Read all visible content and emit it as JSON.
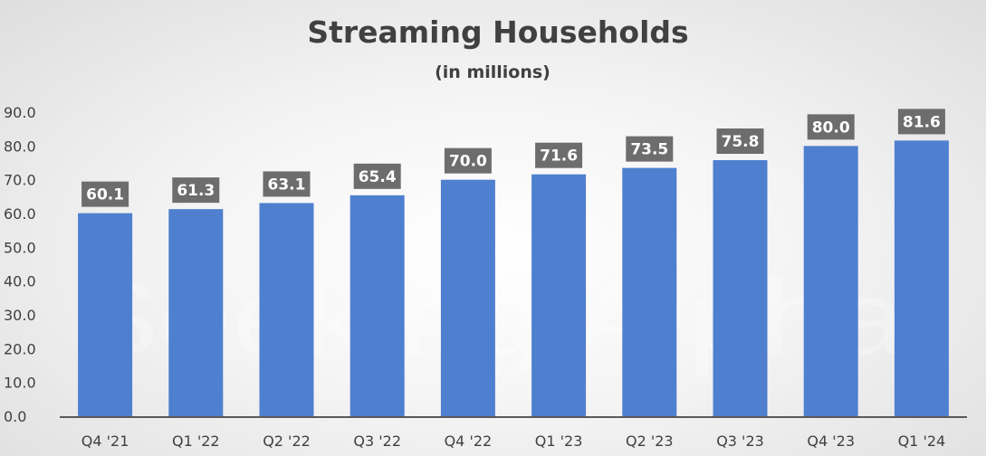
{
  "chart_data": {
    "type": "bar",
    "title": "Streaming Households",
    "subtitle": "(in millions)",
    "categories": [
      "Q4 '21",
      "Q1 '22",
      "Q2 '22",
      "Q3 '22",
      "Q4 '22",
      "Q1 '23",
      "Q2 '23",
      "Q3 '23",
      "Q4 '23",
      "Q1 '24"
    ],
    "values": [
      60.1,
      61.3,
      63.1,
      65.4,
      70.0,
      71.6,
      73.5,
      75.8,
      80.0,
      81.6
    ],
    "data_labels": [
      "60.1",
      "61.3",
      "63.1",
      "65.4",
      "70.0",
      "71.6",
      "73.5",
      "75.8",
      "80.0",
      "81.6"
    ],
    "y_ticks": [
      "0.0",
      "10.0",
      "20.0",
      "30.0",
      "40.0",
      "50.0",
      "60.0",
      "70.0",
      "80.0",
      "90.0"
    ],
    "ylim": [
      0,
      90
    ],
    "grid": false,
    "legend": "none",
    "bar_color": "#4f7fcf",
    "label_box_color": "#6d6d6d",
    "axis_color": "#595959",
    "watermark": "Seeking Alpha"
  }
}
